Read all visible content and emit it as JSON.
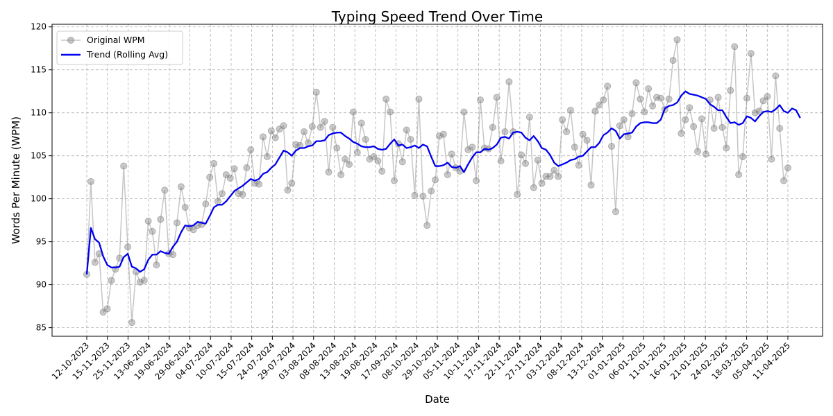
{
  "chart_data": {
    "type": "line",
    "title": "Typing Speed Trend Over Time",
    "xlabel": "Date",
    "ylabel": "Words Per Minute (WPM)",
    "ylim": [
      84,
      120.3
    ],
    "yticks": [
      85,
      90,
      95,
      100,
      105,
      110,
      115,
      120
    ],
    "grid": true,
    "legend_position": "top-left",
    "x_tick_labels": [
      "12-10-2023",
      "15-11-2023",
      "25-11-2023",
      "13-06-2024",
      "19-06-2024",
      "29-06-2024",
      "04-07-2024",
      "10-07-2024",
      "15-07-2024",
      "24-07-2024",
      "29-07-2024",
      "03-08-2024",
      "08-08-2024",
      "13-08-2024",
      "19-08-2024",
      "17-09-2024",
      "08-10-2024",
      "29-10-2024",
      "05-11-2024",
      "10-11-2024",
      "17-11-2024",
      "22-11-2024",
      "27-11-2024",
      "03-12-2024",
      "08-12-2024",
      "13-12-2024",
      "01-01-2025",
      "06-01-2025",
      "11-01-2025",
      "16-01-2025",
      "21-01-2025",
      "24-02-2025",
      "18-03-2025",
      "05-04-2025",
      "11-04-2025"
    ],
    "series": [
      {
        "name": "Original WPM",
        "color": "#808080",
        "values": [
          91.2,
          102.0,
          92.6,
          93.6,
          86.8,
          87.2,
          90.5,
          91.8,
          93.1,
          103.8,
          94.4,
          85.6,
          91.5,
          90.3,
          90.5,
          97.4,
          96.2,
          92.3,
          97.6,
          101.0,
          93.6,
          93.5,
          97.2,
          101.4,
          99.0,
          96.6,
          96.4,
          96.9,
          97.0,
          99.4,
          102.5,
          104.1,
          99.7,
          100.6,
          102.8,
          102.4,
          103.5,
          100.6,
          100.5,
          103.6,
          105.7,
          101.8,
          101.7,
          107.2,
          104.9,
          107.9,
          107.1,
          108.1,
          108.5,
          101.0,
          101.8,
          106.3,
          106.2,
          107.8,
          106.5,
          108.4,
          112.4,
          108.3,
          109.0,
          103.1,
          108.3,
          105.9,
          102.8,
          104.6,
          104.0,
          110.1,
          105.4,
          108.8,
          106.9,
          104.6,
          104.9,
          104.4,
          103.2,
          111.6,
          110.1,
          102.1,
          106.4,
          104.3,
          108.0,
          106.9,
          100.4,
          111.6,
          100.3,
          96.9,
          100.9,
          102.2,
          107.3,
          107.5,
          102.8,
          105.2,
          103.6,
          103.2,
          110.1,
          105.7,
          106.0,
          102.1,
          111.5,
          105.9,
          105.8,
          108.3,
          111.8,
          104.4,
          107.8,
          113.6,
          107.8,
          100.5,
          105.1,
          104.1,
          109.5,
          101.3,
          104.5,
          101.8,
          102.6,
          102.6,
          103.3,
          102.6,
          109.2,
          107.8,
          110.3,
          106.0,
          103.9,
          107.5,
          106.8,
          101.6,
          110.2,
          110.9,
          111.5,
          113.1,
          106.1,
          98.5,
          108.5,
          109.2,
          107.2,
          109.9,
          113.5,
          111.6,
          110.1,
          112.8,
          110.8,
          111.8,
          111.7,
          110.4,
          111.6,
          116.1,
          118.5,
          107.6,
          109.2,
          110.6,
          108.4,
          105.5,
          109.3,
          105.2,
          111.5,
          108.2,
          111.8,
          108.3,
          105.9,
          112.6,
          117.7,
          102.8,
          104.9,
          111.7,
          116.9,
          110.0,
          110.2,
          111.4,
          111.9,
          104.6,
          114.3,
          108.2,
          102.1,
          103.6
        ]
      },
      {
        "name": "Trend (Rolling Avg)",
        "color": "#0000ee",
        "values": [
          91.2,
          96.6,
          95.3,
          94.9,
          93.3,
          92.3,
          92.0,
          92.0,
          92.1,
          93.2,
          93.6,
          92.1,
          91.9,
          91.5,
          91.8,
          92.9,
          93.5,
          93.5,
          93.9,
          93.7,
          93.6,
          94.4,
          95.0,
          96.1,
          96.9,
          96.8,
          96.9,
          97.3,
          97.2,
          97.1,
          98.0,
          99.0,
          99.3,
          99.3,
          99.7,
          100.3,
          100.9,
          101.2,
          101.5,
          101.9,
          102.3,
          102.1,
          102.3,
          102.9,
          103.1,
          103.6,
          104.0,
          104.8,
          105.6,
          105.4,
          105.0,
          105.6,
          105.9,
          105.9,
          106.1,
          106.2,
          106.7,
          106.7,
          106.8,
          107.4,
          107.6,
          107.7,
          107.7,
          107.3,
          107.0,
          106.6,
          106.4,
          106.1,
          106.0,
          106.0,
          106.1,
          105.8,
          105.7,
          105.8,
          106.4,
          106.9,
          106.2,
          106.3,
          105.9,
          106.0,
          106.2,
          105.9,
          106.3,
          106.1,
          104.9,
          103.8,
          103.8,
          103.9,
          104.2,
          103.7,
          103.6,
          103.8,
          103.1,
          104.0,
          104.8,
          105.4,
          105.4,
          105.8,
          105.7,
          105.9,
          106.3,
          107.1,
          107.2,
          107.0,
          107.7,
          107.8,
          107.7,
          107.1,
          106.8,
          107.3,
          106.7,
          105.9,
          105.7,
          105.1,
          104.2,
          103.8,
          104.0,
          104.2,
          104.5,
          104.6,
          104.9,
          105.0,
          105.5,
          106.0,
          106.0,
          106.5,
          107.4,
          107.7,
          108.2,
          107.9,
          107.0,
          107.5,
          107.6,
          107.7,
          108.4,
          108.8,
          108.9,
          108.9,
          108.8,
          108.8,
          109.2,
          110.5,
          110.8,
          110.9,
          111.2,
          112.0,
          112.5,
          112.2,
          112.1,
          112.0,
          111.8,
          111.6,
          111.0,
          110.7,
          110.3,
          110.3,
          109.5,
          108.8,
          108.9,
          108.6,
          108.8,
          109.6,
          109.4,
          109.0,
          109.6,
          110.1,
          110.2,
          110.1,
          110.4,
          110.9,
          110.2,
          110.0,
          110.5,
          110.3,
          109.4
        ]
      }
    ]
  }
}
